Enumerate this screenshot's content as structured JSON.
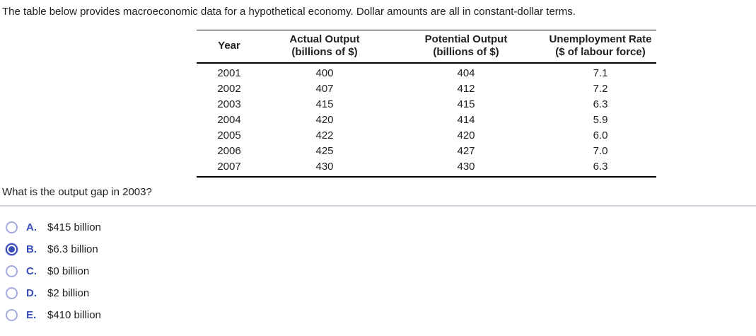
{
  "intro": "The table below provides macroeconomic data for a hypothetical economy. Dollar amounts are all in constant-dollar terms.",
  "table": {
    "headers": [
      {
        "line1": "Year",
        "line2": ""
      },
      {
        "line1": "Actual Output",
        "line2": "(billions of $)"
      },
      {
        "line1": "Potential Output",
        "line2": "(billions of $)"
      },
      {
        "line1": "Unemployment Rate",
        "line2": "($ of labour force)"
      }
    ],
    "rows": [
      [
        "2001",
        "400",
        "404",
        "7.1"
      ],
      [
        "2002",
        "407",
        "412",
        "7.2"
      ],
      [
        "2003",
        "415",
        "415",
        "6.3"
      ],
      [
        "2004",
        "420",
        "414",
        "5.9"
      ],
      [
        "2005",
        "422",
        "420",
        "6.0"
      ],
      [
        "2006",
        "425",
        "427",
        "7.0"
      ],
      [
        "2007",
        "430",
        "430",
        "6.3"
      ]
    ]
  },
  "question": "What is the output gap in 2003?",
  "options": [
    {
      "letter": "A.",
      "text": "$415 billion",
      "selected": false
    },
    {
      "letter": "B.",
      "text": "$6.3 billion",
      "selected": true
    },
    {
      "letter": "C.",
      "text": "$0 billion",
      "selected": false
    },
    {
      "letter": "D.",
      "text": "$2 billion",
      "selected": false
    },
    {
      "letter": "E.",
      "text": "$410 billion",
      "selected": false
    }
  ],
  "colors": {
    "accent_blue": "#3a4cb8",
    "radio_ring_unselected": "#a4abdf",
    "divider_gray": "#cfd4dc",
    "text": "#1f1f1f"
  }
}
